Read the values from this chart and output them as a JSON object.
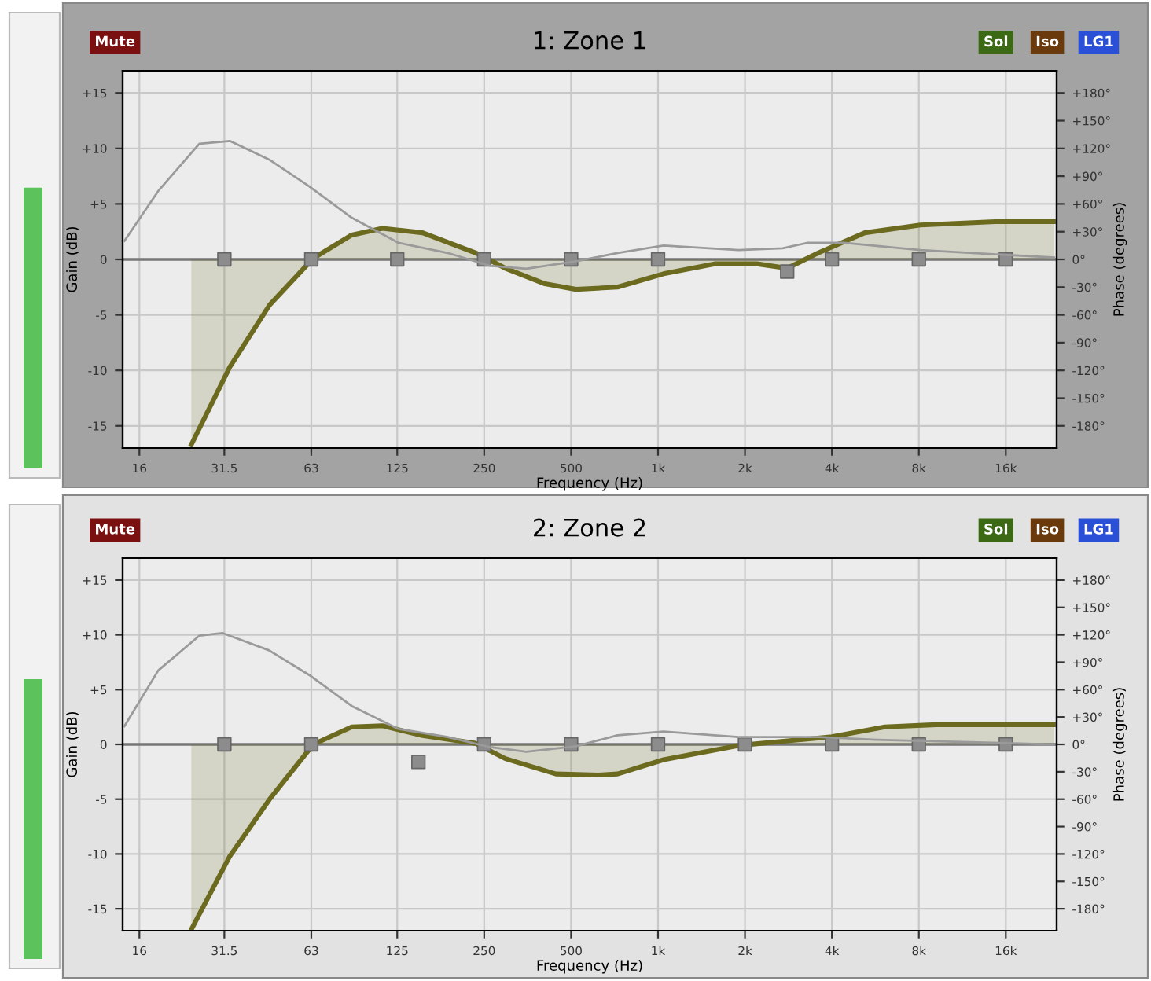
{
  "chart_data": [
    {
      "type": "line",
      "title": "1: Zone 1",
      "xlabel": "Frequency (Hz)",
      "ylabel": "Gain (dB)",
      "y2label": "Phase (degrees)",
      "log": "x",
      "grid": true,
      "annotations": [
        "Mute",
        "Sol",
        "Iso",
        "LG1"
      ],
      "xlim": [
        14,
        24000
      ],
      "xticks": [
        16,
        {
          "value": 31.5,
          "label": "31.5"
        },
        63,
        125,
        250,
        500,
        {
          "value": 1000,
          "label": "1k"
        },
        {
          "value": 2000,
          "label": "2k"
        },
        {
          "value": 4000,
          "label": "4k"
        },
        {
          "value": 8000,
          "label": "8k"
        },
        {
          "value": 16000,
          "label": "16k"
        }
      ],
      "ylim": [
        -17,
        17
      ],
      "yticks": [
        {
          "value": 15,
          "label": "+15"
        },
        {
          "value": 10,
          "label": "+10"
        },
        {
          "value": 5,
          "label": "+5"
        },
        0,
        -5,
        -10,
        -15
      ],
      "y2lim": [
        -204,
        204
      ],
      "y2ticks": [
        {
          "value": 180,
          "label": "+180°"
        },
        {
          "value": 150,
          "label": "+150°"
        },
        {
          "value": 120,
          "label": "+120°"
        },
        {
          "value": 90,
          "label": "+90°"
        },
        {
          "value": 60,
          "label": "+60°"
        },
        {
          "value": 30,
          "label": "+30°"
        },
        {
          "value": 0,
          "label": "0°"
        },
        {
          "value": -30,
          "label": "-30°"
        },
        {
          "value": -60,
          "label": "-60°"
        },
        {
          "value": -90,
          "label": "-90°"
        },
        {
          "value": -120,
          "label": "-120°"
        },
        {
          "value": -150,
          "label": "-150°"
        },
        {
          "value": -180,
          "label": "-180°"
        }
      ],
      "series": [
        {
          "type": "area",
          "color": "#6b6a1f",
          "x": [
            24.2,
            32.9,
            45.2,
            64,
            87,
            111,
            153,
            233,
            296,
            406,
            520,
            724,
            1045,
            1570,
            2200,
            2800,
            3600,
            5200,
            8100,
            14700,
            23500
          ],
          "values": [
            -16.7,
            -9.7,
            -4.1,
            0.1,
            2.2,
            2.8,
            2.4,
            0.6,
            -0.8,
            -2.2,
            -2.7,
            -2.5,
            -1.3,
            -0.4,
            -0.4,
            -0.8,
            0.6,
            2.4,
            3.1,
            3.4,
            3.4
          ]
        },
        {
          "axis": "y2",
          "color": "#9a9a9a",
          "x": [
            14.2,
            18.6,
            25.8,
            33,
            45,
            62,
            87,
            126,
            187,
            262,
            350,
            520,
            724,
            1045,
            1900,
            2700,
            3300,
            4400,
            8100,
            23500
          ],
          "values": [
            20,
            74,
            125,
            128,
            108,
            79,
            45,
            18,
            7,
            -7,
            -10,
            -2,
            7,
            15,
            10,
            12,
            18,
            18,
            10,
            2
          ]
        },
        {
          "type": "scatter",
          "marker": "square",
          "color": "#8c8c8c",
          "x": [
            31.5,
            63,
            125,
            250,
            500,
            1000,
            2800,
            4000,
            8000,
            16000
          ],
          "values": [
            0,
            0,
            0,
            0,
            0,
            0,
            -1.1,
            0,
            0,
            0
          ]
        }
      ]
    },
    {
      "type": "line",
      "title": "2: Zone 2",
      "xlabel": "Frequency (Hz)",
      "ylabel": "Gain (dB)",
      "y2label": "Phase (degrees)",
      "log": "x",
      "grid": true,
      "annotations": [
        "Mute",
        "Sol",
        "Iso",
        "LG1"
      ],
      "xlim": [
        14,
        24000
      ],
      "xticks": [
        16,
        {
          "value": 31.5,
          "label": "31.5"
        },
        63,
        125,
        250,
        500,
        {
          "value": 1000,
          "label": "1k"
        },
        {
          "value": 2000,
          "label": "2k"
        },
        {
          "value": 4000,
          "label": "4k"
        },
        {
          "value": 8000,
          "label": "8k"
        },
        {
          "value": 16000,
          "label": "16k"
        }
      ],
      "ylim": [
        -17,
        17
      ],
      "yticks": [
        {
          "value": 15,
          "label": "+15"
        },
        {
          "value": 10,
          "label": "+10"
        },
        {
          "value": 5,
          "label": "+5"
        },
        0,
        -5,
        -10,
        -15
      ],
      "y2lim": [
        -204,
        204
      ],
      "y2ticks": [
        {
          "value": 180,
          "label": "+180°"
        },
        {
          "value": 150,
          "label": "+150°"
        },
        {
          "value": 120,
          "label": "+120°"
        },
        {
          "value": 90,
          "label": "+90°"
        },
        {
          "value": 60,
          "label": "+60°"
        },
        {
          "value": 30,
          "label": "+30°"
        },
        {
          "value": 0,
          "label": "0°"
        },
        {
          "value": -30,
          "label": "-30°"
        },
        {
          "value": -60,
          "label": "-60°"
        },
        {
          "value": -90,
          "label": "-90°"
        },
        {
          "value": -120,
          "label": "-120°"
        },
        {
          "value": -150,
          "label": "-150°"
        },
        {
          "value": -180,
          "label": "-180°"
        }
      ],
      "series": [
        {
          "type": "area",
          "color": "#6b6a1f",
          "x": [
            24.2,
            32.9,
            45.2,
            64,
            87,
            111,
            153,
            233,
            296,
            443,
            620,
            724,
            1045,
            1900,
            4000,
            6100,
            9200,
            23500
          ],
          "values": [
            -16.9,
            -10.2,
            -5.0,
            0,
            1.6,
            1.7,
            0.8,
            0.1,
            -1.3,
            -2.7,
            -2.8,
            -2.7,
            -1.4,
            -0.1,
            0.7,
            1.6,
            1.8,
            1.8
          ]
        },
        {
          "axis": "y2",
          "color": "#9a9a9a",
          "x": [
            14.2,
            18.6,
            25.8,
            31,
            45,
            62,
            87,
            126,
            187,
            262,
            350,
            520,
            724,
            1045,
            1900,
            3600,
            5700,
            23500
          ],
          "values": [
            20,
            81,
            119,
            122,
            103,
            76,
            42,
            17,
            8,
            -3,
            -8,
            -2,
            10,
            14,
            8,
            8,
            5,
            0
          ]
        },
        {
          "type": "scatter",
          "marker": "square",
          "color": "#8c8c8c",
          "x": [
            31.5,
            63,
            148,
            250,
            500,
            1000,
            2000,
            4000,
            8000,
            16000
          ],
          "values": [
            0,
            0,
            -1.6,
            0,
            0,
            0,
            0,
            0,
            0,
            0
          ]
        }
      ]
    }
  ]
}
